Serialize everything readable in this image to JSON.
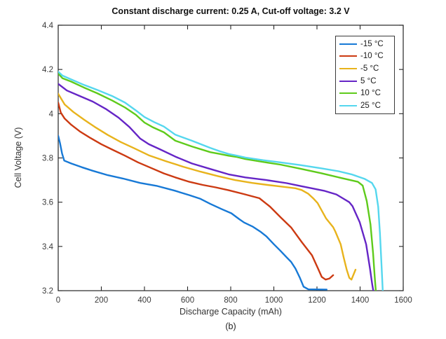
{
  "figure": {
    "title": "Constant discharge current: 0.25 A, Cut-off voltage: 3.2 V",
    "caption": "(b)",
    "background_color": "#ffffff",
    "axis_color": "#262626",
    "tick_label_color": "#3a3a3a"
  },
  "chart_data": {
    "type": "line",
    "title": "Constant discharge current: 0.25 A, Cut-off voltage: 3.2 V",
    "xlabel": "Discharge Capacity (mAh)",
    "ylabel": "Cell Voltage (V)",
    "xlim": [
      0,
      1600
    ],
    "ylim": [
      3.2,
      4.4
    ],
    "x_tick_values": [
      0,
      200,
      400,
      600,
      800,
      1000,
      1200,
      1400,
      1600
    ],
    "x_tick_labels": [
      "0",
      "200",
      "400",
      "600",
      "800",
      "1000",
      "1200",
      "1400",
      "1600"
    ],
    "y_tick_values": [
      3.2,
      3.4,
      3.6,
      3.8,
      4.0,
      4.2,
      4.4
    ],
    "y_tick_labels": [
      "3.2",
      "3.4",
      "3.6",
      "3.8",
      "4",
      "4.2",
      "4.4"
    ],
    "grid": false,
    "box": true,
    "legend_position": "upper right",
    "series": [
      {
        "name": "-15 °C",
        "color": "#1779d6",
        "points": [
          [
            0,
            3.9
          ],
          [
            8,
            3.868
          ],
          [
            18,
            3.82
          ],
          [
            28,
            3.788
          ],
          [
            60,
            3.775
          ],
          [
            110,
            3.758
          ],
          [
            160,
            3.742
          ],
          [
            230,
            3.722
          ],
          [
            300,
            3.707
          ],
          [
            380,
            3.687
          ],
          [
            460,
            3.673
          ],
          [
            540,
            3.652
          ],
          [
            608,
            3.632
          ],
          [
            660,
            3.615
          ],
          [
            706,
            3.592
          ],
          [
            760,
            3.568
          ],
          [
            803,
            3.55
          ],
          [
            840,
            3.523
          ],
          [
            862,
            3.508
          ],
          [
            901,
            3.49
          ],
          [
            940,
            3.465
          ],
          [
            966,
            3.445
          ],
          [
            1000,
            3.41
          ],
          [
            1031,
            3.38
          ],
          [
            1060,
            3.35
          ],
          [
            1080,
            3.33
          ],
          [
            1100,
            3.3
          ],
          [
            1120,
            3.26
          ],
          [
            1138,
            3.218
          ],
          [
            1160,
            3.206
          ],
          [
            1245,
            3.205
          ]
        ]
      },
      {
        "name": "-10 °C",
        "color": "#cc3a12",
        "points": [
          [
            0,
            4.05
          ],
          [
            12,
            4.005
          ],
          [
            30,
            3.978
          ],
          [
            60,
            3.95
          ],
          [
            100,
            3.92
          ],
          [
            150,
            3.89
          ],
          [
            200,
            3.862
          ],
          [
            250,
            3.838
          ],
          [
            310,
            3.81
          ],
          [
            370,
            3.78
          ],
          [
            430,
            3.755
          ],
          [
            490,
            3.73
          ],
          [
            543,
            3.712
          ],
          [
            608,
            3.692
          ],
          [
            670,
            3.678
          ],
          [
            730,
            3.667
          ],
          [
            790,
            3.654
          ],
          [
            860,
            3.637
          ],
          [
            933,
            3.618
          ],
          [
            982,
            3.58
          ],
          [
            1031,
            3.532
          ],
          [
            1080,
            3.486
          ],
          [
            1129,
            3.42
          ],
          [
            1177,
            3.36
          ],
          [
            1205,
            3.3
          ],
          [
            1222,
            3.262
          ],
          [
            1240,
            3.25
          ],
          [
            1258,
            3.255
          ],
          [
            1275,
            3.27
          ]
        ]
      },
      {
        "name": "-5 °C",
        "color": "#e8b31c",
        "points": [
          [
            0,
            4.09
          ],
          [
            30,
            4.042
          ],
          [
            70,
            4.008
          ],
          [
            120,
            3.973
          ],
          [
            170,
            3.94
          ],
          [
            230,
            3.904
          ],
          [
            290,
            3.872
          ],
          [
            350,
            3.845
          ],
          [
            420,
            3.812
          ],
          [
            500,
            3.785
          ],
          [
            580,
            3.76
          ],
          [
            660,
            3.738
          ],
          [
            740,
            3.718
          ],
          [
            820,
            3.7
          ],
          [
            900,
            3.687
          ],
          [
            970,
            3.678
          ],
          [
            1040,
            3.67
          ],
          [
            1100,
            3.663
          ],
          [
            1129,
            3.655
          ],
          [
            1160,
            3.638
          ],
          [
            1185,
            3.615
          ],
          [
            1203,
            3.596
          ],
          [
            1242,
            3.527
          ],
          [
            1275,
            3.487
          ],
          [
            1285,
            3.468
          ],
          [
            1310,
            3.41
          ],
          [
            1324,
            3.35
          ],
          [
            1338,
            3.295
          ],
          [
            1350,
            3.258
          ],
          [
            1360,
            3.25
          ],
          [
            1379,
            3.295
          ]
        ]
      },
      {
        "name": "5 °C",
        "color": "#6525c6",
        "points": [
          [
            0,
            4.135
          ],
          [
            40,
            4.105
          ],
          [
            100,
            4.08
          ],
          [
            160,
            4.055
          ],
          [
            220,
            4.022
          ],
          [
            280,
            3.982
          ],
          [
            330,
            3.94
          ],
          [
            380,
            3.888
          ],
          [
            420,
            3.862
          ],
          [
            470,
            3.84
          ],
          [
            543,
            3.806
          ],
          [
            620,
            3.775
          ],
          [
            706,
            3.75
          ],
          [
            790,
            3.726
          ],
          [
            868,
            3.712
          ],
          [
            966,
            3.7
          ],
          [
            1060,
            3.686
          ],
          [
            1129,
            3.672
          ],
          [
            1236,
            3.651
          ],
          [
            1290,
            3.635
          ],
          [
            1324,
            3.615
          ],
          [
            1350,
            3.6
          ],
          [
            1365,
            3.582
          ],
          [
            1398,
            3.51
          ],
          [
            1428,
            3.41
          ],
          [
            1446,
            3.3
          ],
          [
            1456,
            3.23
          ],
          [
            1461,
            3.2
          ]
        ]
      },
      {
        "name": "10 °C",
        "color": "#5ecb1b",
        "points": [
          [
            0,
            4.182
          ],
          [
            20,
            4.16
          ],
          [
            60,
            4.145
          ],
          [
            120,
            4.118
          ],
          [
            180,
            4.093
          ],
          [
            250,
            4.06
          ],
          [
            310,
            4.028
          ],
          [
            360,
            3.995
          ],
          [
            400,
            3.96
          ],
          [
            440,
            3.938
          ],
          [
            490,
            3.916
          ],
          [
            543,
            3.878
          ],
          [
            620,
            3.852
          ],
          [
            706,
            3.826
          ],
          [
            750,
            3.818
          ],
          [
            790,
            3.81
          ],
          [
            830,
            3.804
          ],
          [
            868,
            3.795
          ],
          [
            950,
            3.782
          ],
          [
            1030,
            3.77
          ],
          [
            1120,
            3.752
          ],
          [
            1220,
            3.731
          ],
          [
            1310,
            3.71
          ],
          [
            1390,
            3.692
          ],
          [
            1412,
            3.675
          ],
          [
            1431,
            3.605
          ],
          [
            1448,
            3.5
          ],
          [
            1460,
            3.37
          ],
          [
            1468,
            3.26
          ],
          [
            1473,
            3.2
          ]
        ]
      },
      {
        "name": "25 °C",
        "color": "#55d7ee",
        "points": [
          [
            0,
            4.19
          ],
          [
            20,
            4.172
          ],
          [
            60,
            4.155
          ],
          [
            120,
            4.13
          ],
          [
            180,
            4.108
          ],
          [
            250,
            4.08
          ],
          [
            310,
            4.05
          ],
          [
            360,
            4.015
          ],
          [
            400,
            3.985
          ],
          [
            445,
            3.962
          ],
          [
            490,
            3.942
          ],
          [
            543,
            3.905
          ],
          [
            620,
            3.878
          ],
          [
            706,
            3.845
          ],
          [
            750,
            3.83
          ],
          [
            790,
            3.818
          ],
          [
            830,
            3.81
          ],
          [
            868,
            3.802
          ],
          [
            950,
            3.79
          ],
          [
            1030,
            3.78
          ],
          [
            1120,
            3.768
          ],
          [
            1220,
            3.753
          ],
          [
            1300,
            3.74
          ],
          [
            1360,
            3.726
          ],
          [
            1420,
            3.706
          ],
          [
            1455,
            3.687
          ],
          [
            1472,
            3.658
          ],
          [
            1484,
            3.58
          ],
          [
            1492,
            3.46
          ],
          [
            1500,
            3.3
          ],
          [
            1505,
            3.2
          ]
        ]
      }
    ]
  },
  "legend": {
    "entries": [
      {
        "label": "-15 °C",
        "color": "#1779d6"
      },
      {
        "label": "-10 °C",
        "color": "#cc3a12"
      },
      {
        "label": "-5 °C",
        "color": "#e8b31c"
      },
      {
        "label": "5 °C",
        "color": "#6525c6"
      },
      {
        "label": "10 °C",
        "color": "#5ecb1b"
      },
      {
        "label": "25 °C",
        "color": "#55d7ee"
      }
    ]
  }
}
